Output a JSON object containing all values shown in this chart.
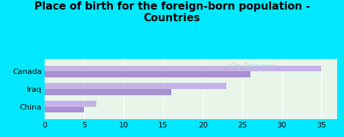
{
  "title": "Place of birth for the foreign-born population -\nCountries",
  "categories": [
    "China",
    "Iraq",
    "Canada"
  ],
  "values1": [
    6.5,
    23.0,
    35.0
  ],
  "values2": [
    5.0,
    16.0,
    26.0
  ],
  "bar_color1": "#c5b3e6",
  "bar_color2": "#a98fd4",
  "background_outer": "#00e8ff",
  "background_inner": "#e8f5e9",
  "xlim": [
    0,
    37
  ],
  "xticks": [
    0,
    5,
    10,
    15,
    20,
    25,
    30,
    35
  ],
  "title_fontsize": 11,
  "label_fontsize": 8,
  "tick_fontsize": 8,
  "watermark": "  City-Data.com"
}
